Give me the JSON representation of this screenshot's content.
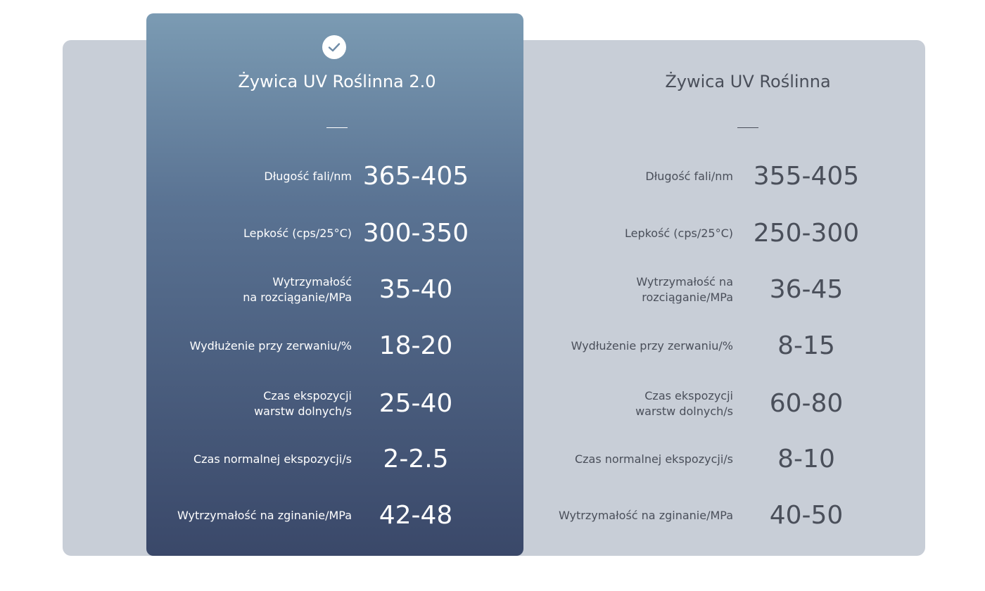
{
  "columns": [
    {
      "title": "Żywica UV Roślinna 2.0",
      "rows": [
        {
          "label": [
            "Długość fali/nm"
          ],
          "value": "365-405"
        },
        {
          "label": [
            "Lepkość (cps/25°C)"
          ],
          "value": "300-350"
        },
        {
          "label": [
            "Wytrzymałość",
            "na rozciąganie/MPa"
          ],
          "value": "35-40"
        },
        {
          "label": [
            "Wydłużenie przy zerwaniu/%"
          ],
          "value": "18-20"
        },
        {
          "label": [
            "Czas ekspozycji",
            "warstw dolnych/s"
          ],
          "value": "25-40"
        },
        {
          "label": [
            "Czas normalnej ekspozycji/s"
          ],
          "value": "2-2.5"
        },
        {
          "label": [
            "Wytrzymałość na zginanie/MPa"
          ],
          "value": "42-48"
        }
      ]
    },
    {
      "title": "Żywica UV Roślinna",
      "rows": [
        {
          "label": [
            "Długość fali/nm"
          ],
          "value": "355-405"
        },
        {
          "label": [
            "Lepkość (cps/25°C)"
          ],
          "value": "250-300"
        },
        {
          "label": [
            "Wytrzymałość na",
            "rozciąganie/MPa"
          ],
          "value": "36-45"
        },
        {
          "label": [
            "Wydłużenie przy zerwaniu/%"
          ],
          "value": "8-15"
        },
        {
          "label": [
            "Czas ekspozycji",
            "warstw dolnych/s"
          ],
          "value": "60-80"
        },
        {
          "label": [
            "Czas normalnej ekspozycji/s"
          ],
          "value": "8-10"
        },
        {
          "label": [
            "Wytrzymałość na zginanie/MPa"
          ],
          "value": "40-50"
        }
      ]
    }
  ]
}
